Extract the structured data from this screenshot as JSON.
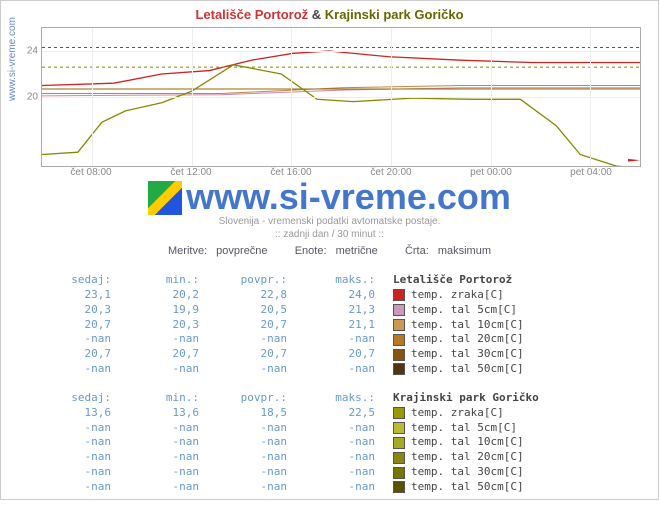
{
  "attribution": "www.si-vreme.com",
  "title": {
    "part1": "Letališče Portorož",
    "sep": "&",
    "part2": "Krajinski park Goričko"
  },
  "watermark": "www.si-vreme.com",
  "caption_line1": "Slovenija - vremenski podatki avtomatske postaje.",
  "caption_line2": ":: zadnji dan / 30 minut ::",
  "metaline": {
    "m1": "Meritve: povprečne",
    "m2": "Enote: metrične",
    "m3": "Črta: maksimum"
  },
  "chart": {
    "type": "line",
    "ylim": [
      14,
      26
    ],
    "yticks": [
      20,
      24
    ],
    "xticks": [
      "čet 08:00",
      "čet 12:00",
      "čet 16:00",
      "čet 20:00",
      "pet 00:00",
      "pet 04:00"
    ],
    "background": "#ffffff",
    "grid_color": "#eeeeee",
    "series": [
      {
        "name": "p1-zraka",
        "color": "#cc2222",
        "style": "solid",
        "width": 1.3,
        "points": [
          [
            0,
            21.0
          ],
          [
            12,
            21.2
          ],
          [
            20,
            22.0
          ],
          [
            28,
            22.3
          ],
          [
            35,
            23.2
          ],
          [
            42,
            23.8
          ],
          [
            48,
            24.0
          ],
          [
            58,
            23.5
          ],
          [
            70,
            23.2
          ],
          [
            82,
            23.0
          ],
          [
            100,
            23.0
          ]
        ]
      },
      {
        "name": "p1-zraka-max",
        "color": "#cc2222",
        "style": "dashed",
        "width": 1,
        "points": [
          [
            0,
            24.3
          ],
          [
            100,
            24.3
          ]
        ]
      },
      {
        "name": "p1-tal5",
        "color": "#cc88aa",
        "style": "solid",
        "width": 1,
        "points": [
          [
            0,
            20.1
          ],
          [
            30,
            20.2
          ],
          [
            50,
            20.6
          ],
          [
            70,
            20.8
          ],
          [
            100,
            20.8
          ]
        ]
      },
      {
        "name": "p1-tal10",
        "color": "#bb8844",
        "style": "solid",
        "width": 1,
        "points": [
          [
            0,
            20.3
          ],
          [
            30,
            20.3
          ],
          [
            50,
            20.8
          ],
          [
            70,
            21.0
          ],
          [
            100,
            21.0
          ]
        ]
      },
      {
        "name": "p1-tal30",
        "color": "#996600",
        "style": "solid",
        "width": 1,
        "points": [
          [
            0,
            20.7
          ],
          [
            100,
            20.7
          ]
        ]
      },
      {
        "name": "p2-zraka",
        "color": "#888800",
        "style": "solid",
        "width": 1.3,
        "points": [
          [
            0,
            15.0
          ],
          [
            6,
            15.2
          ],
          [
            10,
            17.8
          ],
          [
            14,
            18.8
          ],
          [
            20,
            19.5
          ],
          [
            25,
            20.5
          ],
          [
            32,
            22.8
          ],
          [
            40,
            22.0
          ],
          [
            46,
            19.8
          ],
          [
            52,
            19.6
          ],
          [
            62,
            19.9
          ],
          [
            72,
            19.8
          ],
          [
            80,
            19.8
          ],
          [
            86,
            17.5
          ],
          [
            90,
            15.0
          ],
          [
            96,
            14.0
          ],
          [
            100,
            13.8
          ]
        ]
      },
      {
        "name": "p2-zraka-max",
        "color": "#888800",
        "style": "dashed",
        "width": 1,
        "points": [
          [
            0,
            22.6
          ],
          [
            100,
            22.6
          ]
        ]
      }
    ]
  },
  "columns": [
    "sedaj:",
    "min.:",
    "povpr.:",
    "maks.:"
  ],
  "table1": {
    "title": "Letališče Portorož",
    "rows": [
      {
        "vals": [
          "23,1",
          "20,2",
          "22,8",
          "24,0"
        ],
        "label": "temp. zraka[C]",
        "swatch": "#cc2222"
      },
      {
        "vals": [
          "20,3",
          "19,9",
          "20,5",
          "21,3"
        ],
        "label": "temp. tal  5cm[C]",
        "swatch": "#cc99bb"
      },
      {
        "vals": [
          "20,7",
          "20,3",
          "20,7",
          "21,1"
        ],
        "label": "temp. tal 10cm[C]",
        "swatch": "#cc9955"
      },
      {
        "vals": [
          "-nan",
          "-nan",
          "-nan",
          "-nan"
        ],
        "label": "temp. tal 20cm[C]",
        "swatch": "#bb7722"
      },
      {
        "vals": [
          "20,7",
          "20,7",
          "20,7",
          "20,7"
        ],
        "label": "temp. tal 30cm[C]",
        "swatch": "#885511"
      },
      {
        "vals": [
          "-nan",
          "-nan",
          "-nan",
          "-nan"
        ],
        "label": "temp. tal 50cm[C]",
        "swatch": "#553311"
      }
    ]
  },
  "table2": {
    "title": "Krajinski park Goričko",
    "rows": [
      {
        "vals": [
          "13,6",
          "13,6",
          "18,5",
          "22,5"
        ],
        "label": "temp. zraka[C]",
        "swatch": "#999900"
      },
      {
        "vals": [
          "-nan",
          "-nan",
          "-nan",
          "-nan"
        ],
        "label": "temp. tal  5cm[C]",
        "swatch": "#bbbb33"
      },
      {
        "vals": [
          "-nan",
          "-nan",
          "-nan",
          "-nan"
        ],
        "label": "temp. tal 10cm[C]",
        "swatch": "#aaaa22"
      },
      {
        "vals": [
          "-nan",
          "-nan",
          "-nan",
          "-nan"
        ],
        "label": "temp. tal 20cm[C]",
        "swatch": "#888811"
      },
      {
        "vals": [
          "-nan",
          "-nan",
          "-nan",
          "-nan"
        ],
        "label": "temp. tal 30cm[C]",
        "swatch": "#777700"
      },
      {
        "vals": [
          "-nan",
          "-nan",
          "-nan",
          "-nan"
        ],
        "label": "temp. tal 50cm[C]",
        "swatch": "#555500"
      }
    ]
  }
}
